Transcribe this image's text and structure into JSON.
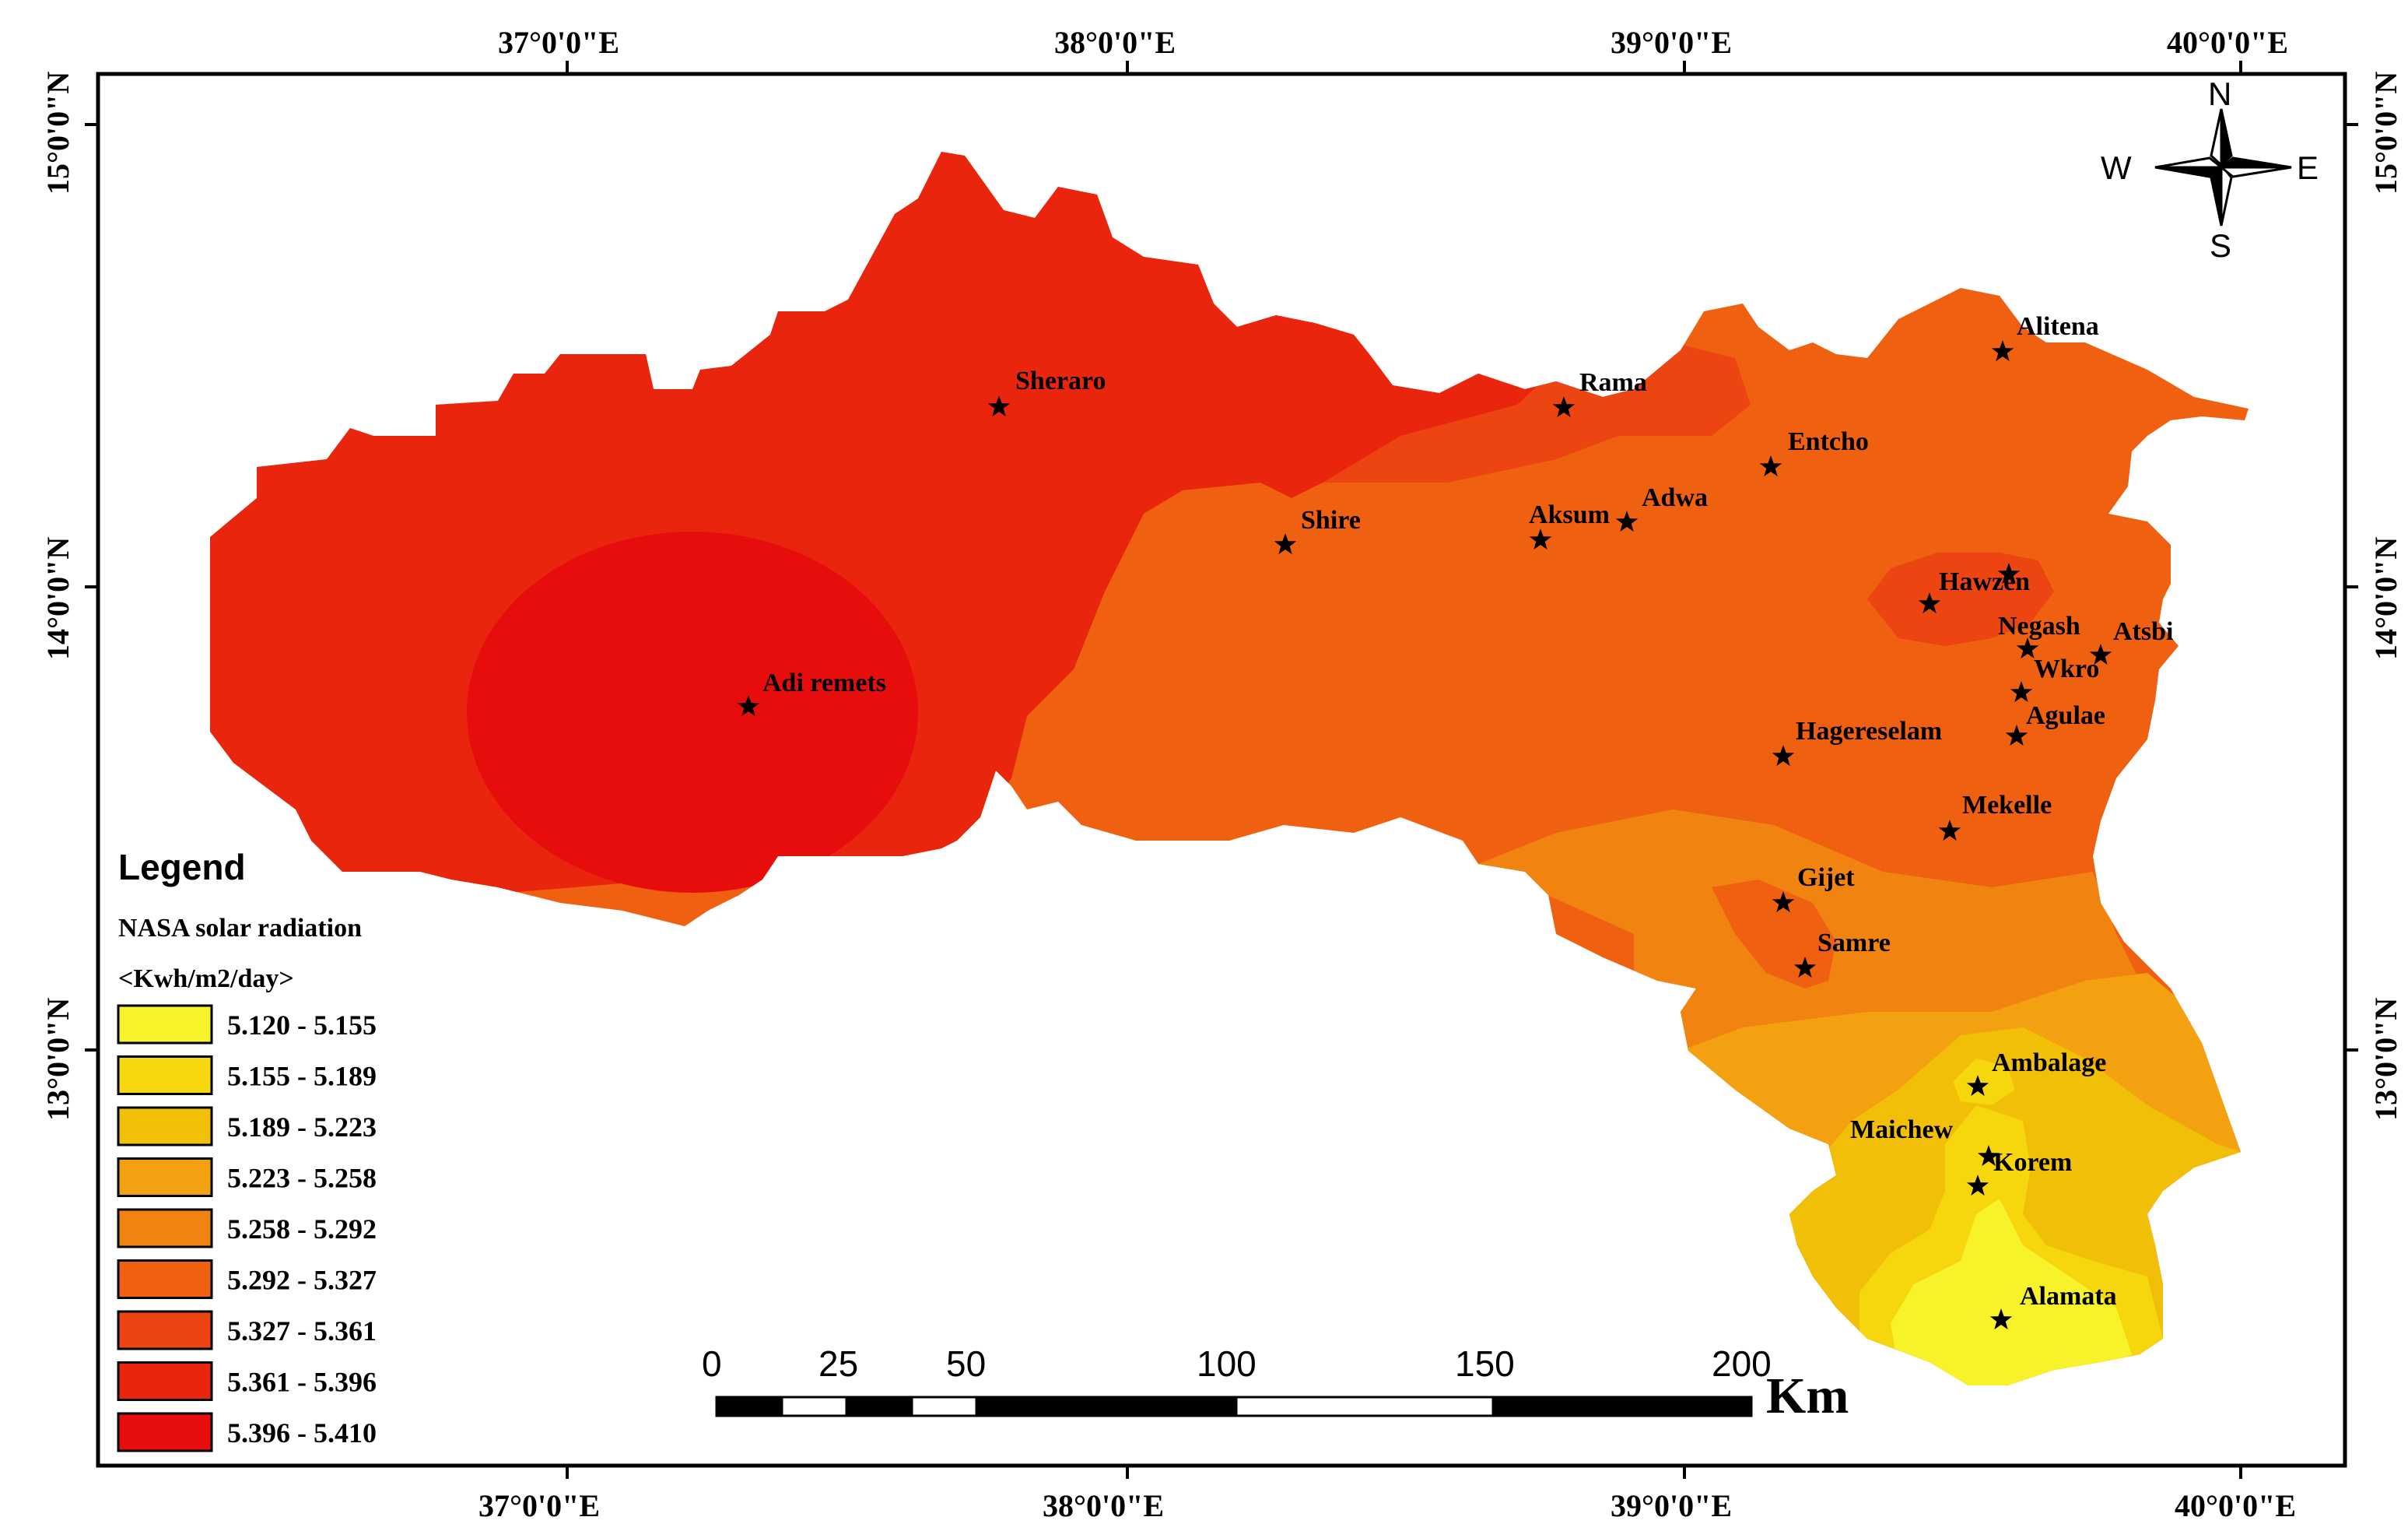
{
  "map": {
    "top_lon_labels": [
      "37°0'0\"E",
      "38°0'0\"E",
      "39°0'0\"E",
      "40°0'0\"E"
    ],
    "bottom_lon_labels": [
      "37°0'0\"E",
      "38°0'0\"E",
      "39°0'0\"E",
      "40°0'0\"E"
    ],
    "left_lat_labels": [
      "15°0'0\"N",
      "14°0'0\"N",
      "13°0'0\"N"
    ],
    "right_lat_labels": [
      "15°0'0\"N",
      "14°0'0\"N",
      "13°0'0\"N"
    ],
    "colors": {
      "c1": "#f7f22a",
      "c2": "#f6d60c",
      "c3": "#f2bf08",
      "c4": "#f3a110",
      "c5": "#f18410",
      "c6": "#ef6010",
      "c7": "#ed4512",
      "c8": "#ea250e",
      "c9": "#e80d0d"
    }
  },
  "compass": {
    "n": "N",
    "s": "S",
    "e": "E",
    "w": "W"
  },
  "places": [
    {
      "name": "Sheraro"
    },
    {
      "name": "Rama"
    },
    {
      "name": "Alitena"
    },
    {
      "name": "Entcho"
    },
    {
      "name": "Adwa"
    },
    {
      "name": "Aksum"
    },
    {
      "name": "Shire"
    },
    {
      "name": "Hawzen"
    },
    {
      "name": "Negash"
    },
    {
      "name": "Atsbi"
    },
    {
      "name": "Wkro"
    },
    {
      "name": "Agulae"
    },
    {
      "name": "Adi remets"
    },
    {
      "name": "Hagereselam"
    },
    {
      "name": "Mekelle"
    },
    {
      "name": "Gijet"
    },
    {
      "name": "Samre"
    },
    {
      "name": "Ambalage"
    },
    {
      "name": "Maichew"
    },
    {
      "name": "Korem"
    },
    {
      "name": "Alamata"
    }
  ],
  "legend": {
    "title": "Legend",
    "subtitle_line1": "NASA solar radiation",
    "subtitle_line2": "<Kwh/m2/day>",
    "classes": [
      {
        "label": "5.120 - 5.155",
        "color": "#f7f22a"
      },
      {
        "label": "5.155 - 5.189",
        "color": "#f6d60c"
      },
      {
        "label": "5.189 - 5.223",
        "color": "#f2bf08"
      },
      {
        "label": "5.223 - 5.258",
        "color": "#f3a110"
      },
      {
        "label": "5.258 - 5.292",
        "color": "#f18410"
      },
      {
        "label": "5.292 - 5.327",
        "color": "#ef6010"
      },
      {
        "label": "5.327 - 5.361",
        "color": "#ed4512"
      },
      {
        "label": "5.361 - 5.396",
        "color": "#ea250e"
      },
      {
        "label": "5.396 - 5.410",
        "color": "#e80d0d"
      }
    ]
  },
  "scale_bar": {
    "ticks": [
      "0",
      "25",
      "50",
      "100",
      "150",
      "200"
    ],
    "unit": "Km"
  }
}
